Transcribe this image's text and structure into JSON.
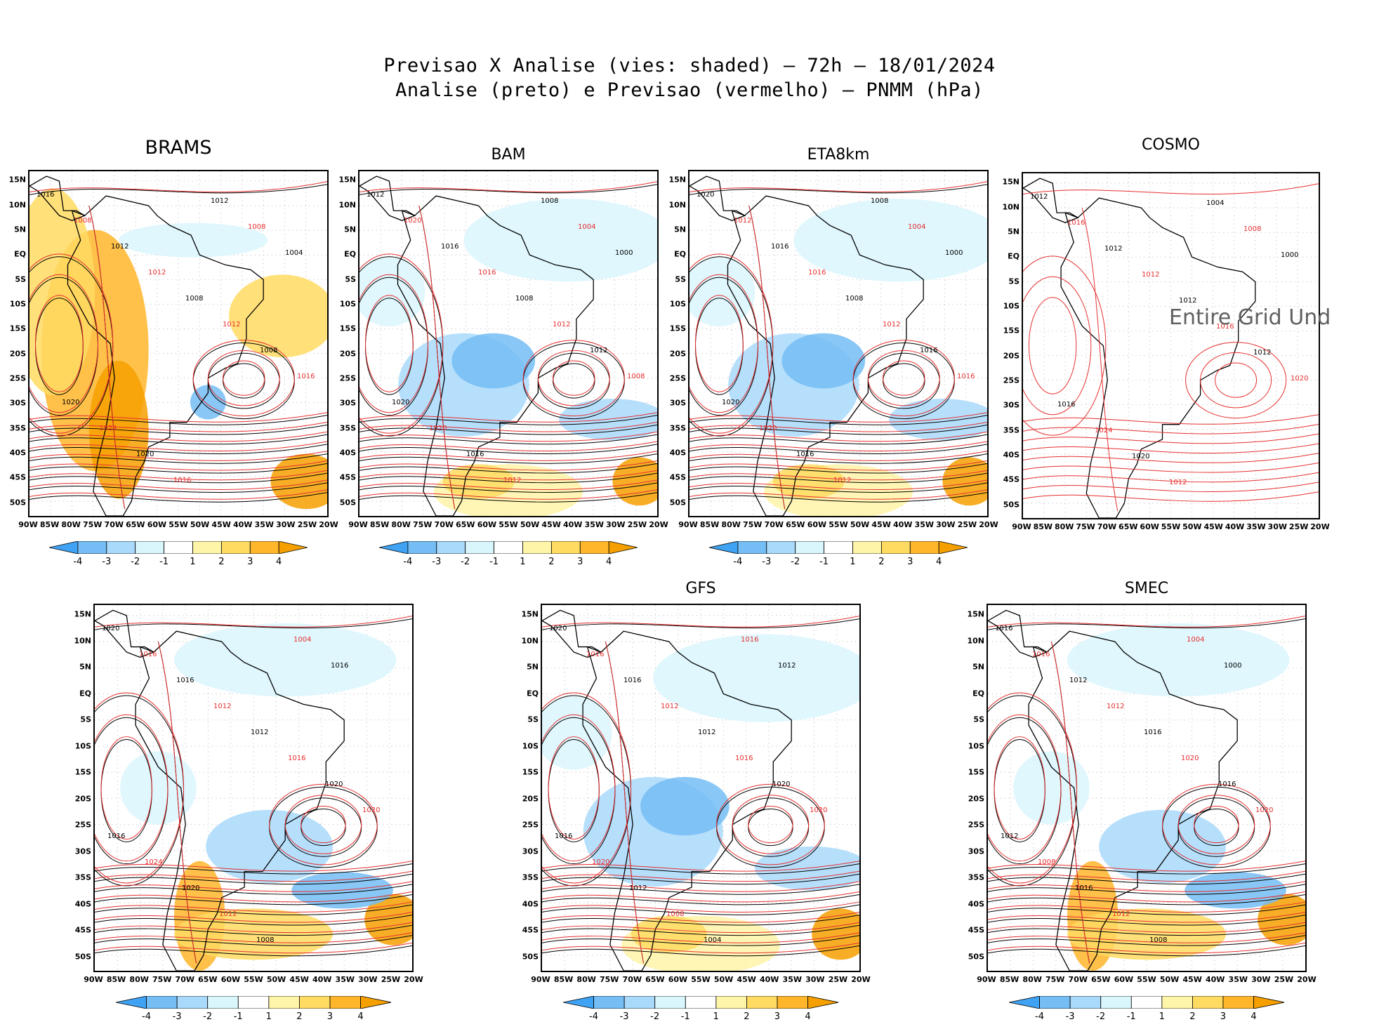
{
  "header": {
    "line1": "Previsao X Analise (vies: shaded) – 72h – 18/01/2024",
    "line2": "Analise (preto) e Previsao (vermelho) – PNMM (hPa)"
  },
  "latitude_labels": [
    "15N",
    "10N",
    "5N",
    "EQ",
    "5S",
    "10S",
    "15S",
    "20S",
    "25S",
    "30S",
    "35S",
    "40S",
    "45S",
    "50S"
  ],
  "longitude_labels": [
    "90W",
    "85W",
    "80W",
    "75W",
    "70W",
    "65W",
    "60W",
    "55W",
    "50W",
    "45W",
    "40W",
    "35W",
    "30W",
    "25W",
    "20W"
  ],
  "colorbar": {
    "labels": [
      "-4",
      "-3",
      "-2",
      "-1",
      "1",
      "2",
      "3",
      "4"
    ],
    "colors": [
      "#3fa2f2",
      "#74bdf5",
      "#a9d9fb",
      "#d9f6fd",
      "#ffffff",
      "#fff5a8",
      "#ffdb62",
      "#ffb62a",
      "#f6a000"
    ]
  },
  "colors": {
    "analysis_contour": "#000000",
    "forecast_contour": "#e62e2e"
  },
  "panels": [
    {
      "id": "brams",
      "title": "BRAMS",
      "bias_style": "warm",
      "isobar_labels": [
        "1016",
        "1008",
        "1012",
        "1012",
        "1008",
        "1012",
        "1008",
        "1016",
        "1020",
        "1024",
        "1020",
        "1016",
        "1012",
        "1008",
        "1004"
      ]
    },
    {
      "id": "bam",
      "title": "BAM",
      "bias_style": "cool",
      "isobar_labels": [
        "1012",
        "1020",
        "1016",
        "1016",
        "1008",
        "1012",
        "1012",
        "1008",
        "1020",
        "1020",
        "1016",
        "1012",
        "1008",
        "1004",
        "1000"
      ]
    },
    {
      "id": "eta8km",
      "title": "ETA8km",
      "bias_style": "cool",
      "isobar_labels": [
        "1020",
        "1012",
        "1016",
        "1016",
        "1008",
        "1012",
        "1016",
        "1016",
        "1020",
        "1020",
        "1016",
        "1012",
        "1008",
        "1004",
        "1000"
      ]
    },
    {
      "id": "cosmo",
      "title": "COSMO",
      "bias_style": "none",
      "undefined_text": "Entire Grid Und",
      "isobar_labels": [
        "1012",
        "1016",
        "1012",
        "1012",
        "1012",
        "1016",
        "1012",
        "1020",
        "1016",
        "1024",
        "1020",
        "1012",
        "1004",
        "1008",
        "1000"
      ]
    },
    {
      "id": "bottom-left",
      "title": "",
      "bias_style": "mixed",
      "isobar_labels": [
        "1020",
        "1016",
        "1016",
        "1012",
        "1012",
        "1016",
        "1020",
        "1020",
        "1016",
        "1024",
        "1020",
        "1012",
        "1008",
        "1004",
        "1016"
      ]
    },
    {
      "id": "gfs",
      "title": "GFS",
      "bias_style": "cool",
      "isobar_labels": [
        "1020",
        "1016",
        "1016",
        "1012",
        "1012",
        "1016",
        "1020",
        "1020",
        "1016",
        "1020",
        "1012",
        "1008",
        "1004",
        "1016",
        "1012"
      ]
    },
    {
      "id": "smec",
      "title": "SMEC",
      "bias_style": "mixed",
      "isobar_labels": [
        "1016",
        "1016",
        "1012",
        "1012",
        "1016",
        "1020",
        "1016",
        "1020",
        "1012",
        "1008",
        "1016",
        "1012",
        "1008",
        "1004",
        "1000"
      ]
    }
  ]
}
